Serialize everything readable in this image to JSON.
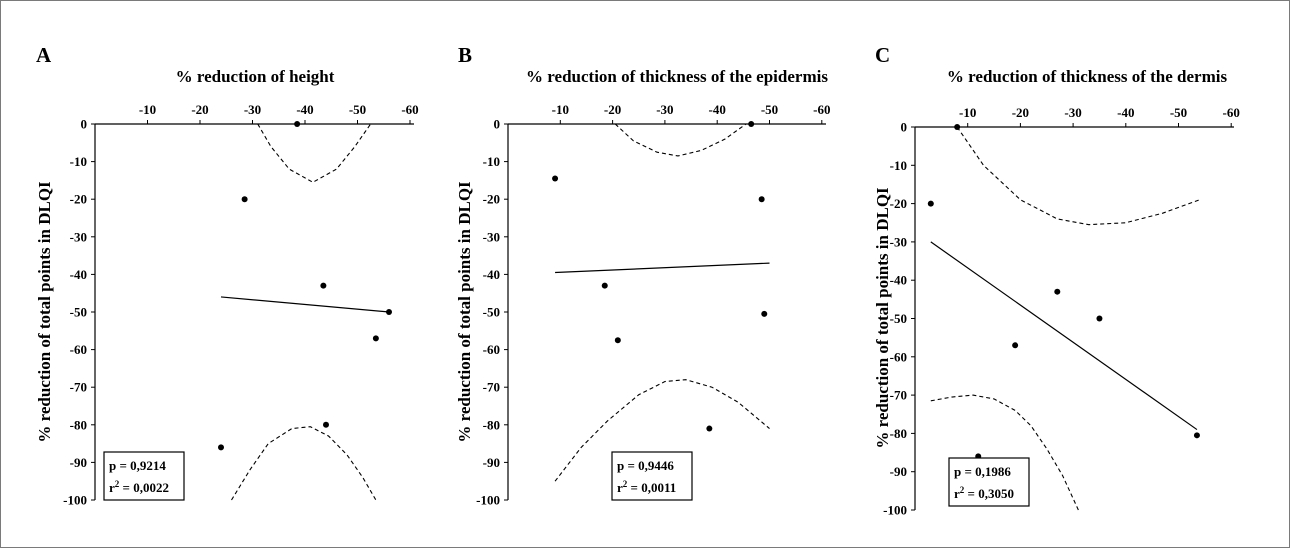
{
  "chart_data": [
    {
      "type": "scatter",
      "panel_label": "A",
      "title": "% reduction of height",
      "ylabel": "% reduction of total points in DLQI",
      "xlim": [
        0,
        -60
      ],
      "ylim": [
        0,
        -100
      ],
      "x_ticks": [
        "-10",
        "-20",
        "-30",
        "-40",
        "-50",
        "-60"
      ],
      "y_ticks": [
        "0",
        "-10",
        "-20",
        "-30",
        "-40",
        "-50",
        "-60",
        "-70",
        "-80",
        "-90",
        "-100"
      ],
      "points": [
        {
          "x": -38.5,
          "y": 0
        },
        {
          "x": -28.5,
          "y": -20
        },
        {
          "x": -43.5,
          "y": -43
        },
        {
          "x": -56,
          "y": -50
        },
        {
          "x": -53.5,
          "y": -57
        },
        {
          "x": -44,
          "y": -80
        },
        {
          "x": -24,
          "y": -86
        }
      ],
      "fit_line": [
        {
          "x": -24,
          "y": -46
        },
        {
          "x": -56,
          "y": -50
        }
      ],
      "confidence_upper": [
        {
          "x": -31,
          "y": 0
        },
        {
          "x": -33.5,
          "y": -6
        },
        {
          "x": -37,
          "y": -12
        },
        {
          "x": -41.5,
          "y": -15.5
        },
        {
          "x": -46,
          "y": -12
        },
        {
          "x": -49.5,
          "y": -6
        },
        {
          "x": -52.5,
          "y": 0
        }
      ],
      "confidence_lower": [
        {
          "x": -26,
          "y": -100
        },
        {
          "x": -29.5,
          "y": -92
        },
        {
          "x": -33,
          "y": -85
        },
        {
          "x": -37.5,
          "y": -81
        },
        {
          "x": -41,
          "y": -80.5
        },
        {
          "x": -44.5,
          "y": -83
        },
        {
          "x": -48,
          "y": -88
        },
        {
          "x": -51,
          "y": -94
        },
        {
          "x": -53.5,
          "y": -100
        }
      ],
      "stats": {
        "p_label": "p =",
        "p_value": "0,9214",
        "r2_label": "r",
        "r2_sup": "2",
        "r2_value": " = 0,0022"
      }
    },
    {
      "type": "scatter",
      "panel_label": "B",
      "title": "% reduction of thickness of the epidermis",
      "ylabel": "% reduction of total points in DLQI",
      "xlim": [
        0,
        -60
      ],
      "ylim": [
        0,
        -100
      ],
      "x_ticks": [
        "-10",
        "-20",
        "-30",
        "-40",
        "-50",
        "-60"
      ],
      "y_ticks": [
        "0",
        "-10",
        "-20",
        "-30",
        "-40",
        "-50",
        "-60",
        "-70",
        "-80",
        "-90",
        "-100"
      ],
      "points": [
        {
          "x": -46.5,
          "y": 0
        },
        {
          "x": -9,
          "y": -14.5
        },
        {
          "x": -48.5,
          "y": -20
        },
        {
          "x": -18.5,
          "y": -43
        },
        {
          "x": -49,
          "y": -50.5
        },
        {
          "x": -21,
          "y": -57.5
        },
        {
          "x": -38.5,
          "y": -81
        }
      ],
      "fit_line": [
        {
          "x": -9,
          "y": -39.5
        },
        {
          "x": -50,
          "y": -37
        }
      ],
      "confidence_upper": [
        {
          "x": -20.5,
          "y": 0
        },
        {
          "x": -24,
          "y": -4.5
        },
        {
          "x": -28.5,
          "y": -7.5
        },
        {
          "x": -32.5,
          "y": -8.5
        },
        {
          "x": -37,
          "y": -7
        },
        {
          "x": -41.5,
          "y": -4
        },
        {
          "x": -45.5,
          "y": 0
        }
      ],
      "confidence_lower": [
        {
          "x": -9,
          "y": -95
        },
        {
          "x": -14,
          "y": -86
        },
        {
          "x": -19,
          "y": -79
        },
        {
          "x": -25,
          "y": -72
        },
        {
          "x": -30,
          "y": -68.5
        },
        {
          "x": -34,
          "y": -68
        },
        {
          "x": -39,
          "y": -70
        },
        {
          "x": -44,
          "y": -74
        },
        {
          "x": -50,
          "y": -81
        }
      ],
      "stats": {
        "p_label": "p =",
        "p_value": "0,9446",
        "r2_label": "r",
        "r2_sup": "2",
        "r2_value": " = 0,0011"
      }
    },
    {
      "type": "scatter",
      "panel_label": "C",
      "title": "% reduction of thickness of the dermis",
      "ylabel": "% reduction of total points in DLQI",
      "xlim": [
        0,
        -60
      ],
      "ylim": [
        0,
        -100
      ],
      "x_ticks": [
        "-10",
        "-20",
        "-30",
        "-40",
        "-50",
        "-60"
      ],
      "y_ticks": [
        "0",
        "-10",
        "-20",
        "-30",
        "-40",
        "-50",
        "-60",
        "-70",
        "-80",
        "-90",
        "-100"
      ],
      "points": [
        {
          "x": -8,
          "y": 0
        },
        {
          "x": -3,
          "y": -20
        },
        {
          "x": -27,
          "y": -43
        },
        {
          "x": -35,
          "y": -50
        },
        {
          "x": -19,
          "y": -57
        },
        {
          "x": -53.5,
          "y": -80.5
        },
        {
          "x": -12,
          "y": -86
        }
      ],
      "fit_line": [
        {
          "x": -3,
          "y": -30
        },
        {
          "x": -53.5,
          "y": -79
        }
      ],
      "confidence_upper": [
        {
          "x": -8,
          "y": 0
        },
        {
          "x": -13,
          "y": -10
        },
        {
          "x": -20,
          "y": -19
        },
        {
          "x": -27,
          "y": -24
        },
        {
          "x": -33,
          "y": -25.5
        },
        {
          "x": -40,
          "y": -25
        },
        {
          "x": -47,
          "y": -22.5
        },
        {
          "x": -54,
          "y": -19
        }
      ],
      "confidence_lower": [
        {
          "x": -3,
          "y": -71.5
        },
        {
          "x": -7,
          "y": -70.5
        },
        {
          "x": -11,
          "y": -70
        },
        {
          "x": -15,
          "y": -71
        },
        {
          "x": -19,
          "y": -74
        },
        {
          "x": -22,
          "y": -78
        },
        {
          "x": -25,
          "y": -84
        },
        {
          "x": -28,
          "y": -91
        },
        {
          "x": -31,
          "y": -100
        }
      ],
      "stats": {
        "p_label": "p =",
        "p_value": "0,1986",
        "r2_label": "r",
        "r2_sup": "2",
        "r2_value": " = 0,3050"
      }
    }
  ]
}
